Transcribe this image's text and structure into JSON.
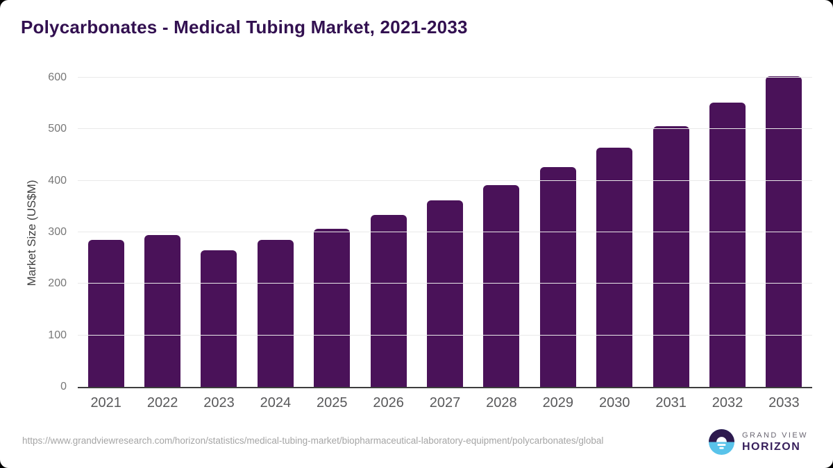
{
  "page": {
    "background_color": "#000000",
    "card_color": "#ffffff"
  },
  "chart_data": {
    "type": "bar",
    "title": "Polycarbonates - Medical Tubing Market, 2021-2033",
    "title_color": "#321050",
    "ylabel": "Market Size (US$M)",
    "xlabel": "",
    "categories": [
      "2021",
      "2022",
      "2023",
      "2024",
      "2025",
      "2026",
      "2027",
      "2028",
      "2029",
      "2030",
      "2031",
      "2032",
      "2033"
    ],
    "values": [
      285,
      294,
      265,
      285,
      307,
      333,
      362,
      391,
      426,
      464,
      506,
      551,
      603
    ],
    "unit": "US$M",
    "ylim": [
      0,
      600
    ],
    "yticks": [
      0,
      100,
      200,
      300,
      400,
      500,
      600
    ],
    "grid": true,
    "legend": false,
    "bar_color": "#4a1259",
    "gridline_color": "#e9e9e9",
    "axis_line_color": "#3d3d3d",
    "tick_label_color": "#777777",
    "x_label_color": "#58585a"
  },
  "footer": {
    "source_url": "https://www.grandviewresearch.com/horizon/statistics/medical-tubing-market/biopharmaceutical-laboratory-equipment/polycarbonates/global",
    "logo": {
      "name_line1": "GRAND VIEW",
      "name_line2": "HORIZON",
      "icon_top_color": "#2e1a4e",
      "icon_bottom_color": "#59c3ea",
      "text_color_primary": "#38205c",
      "text_color_secondary": "#6a6672"
    }
  }
}
